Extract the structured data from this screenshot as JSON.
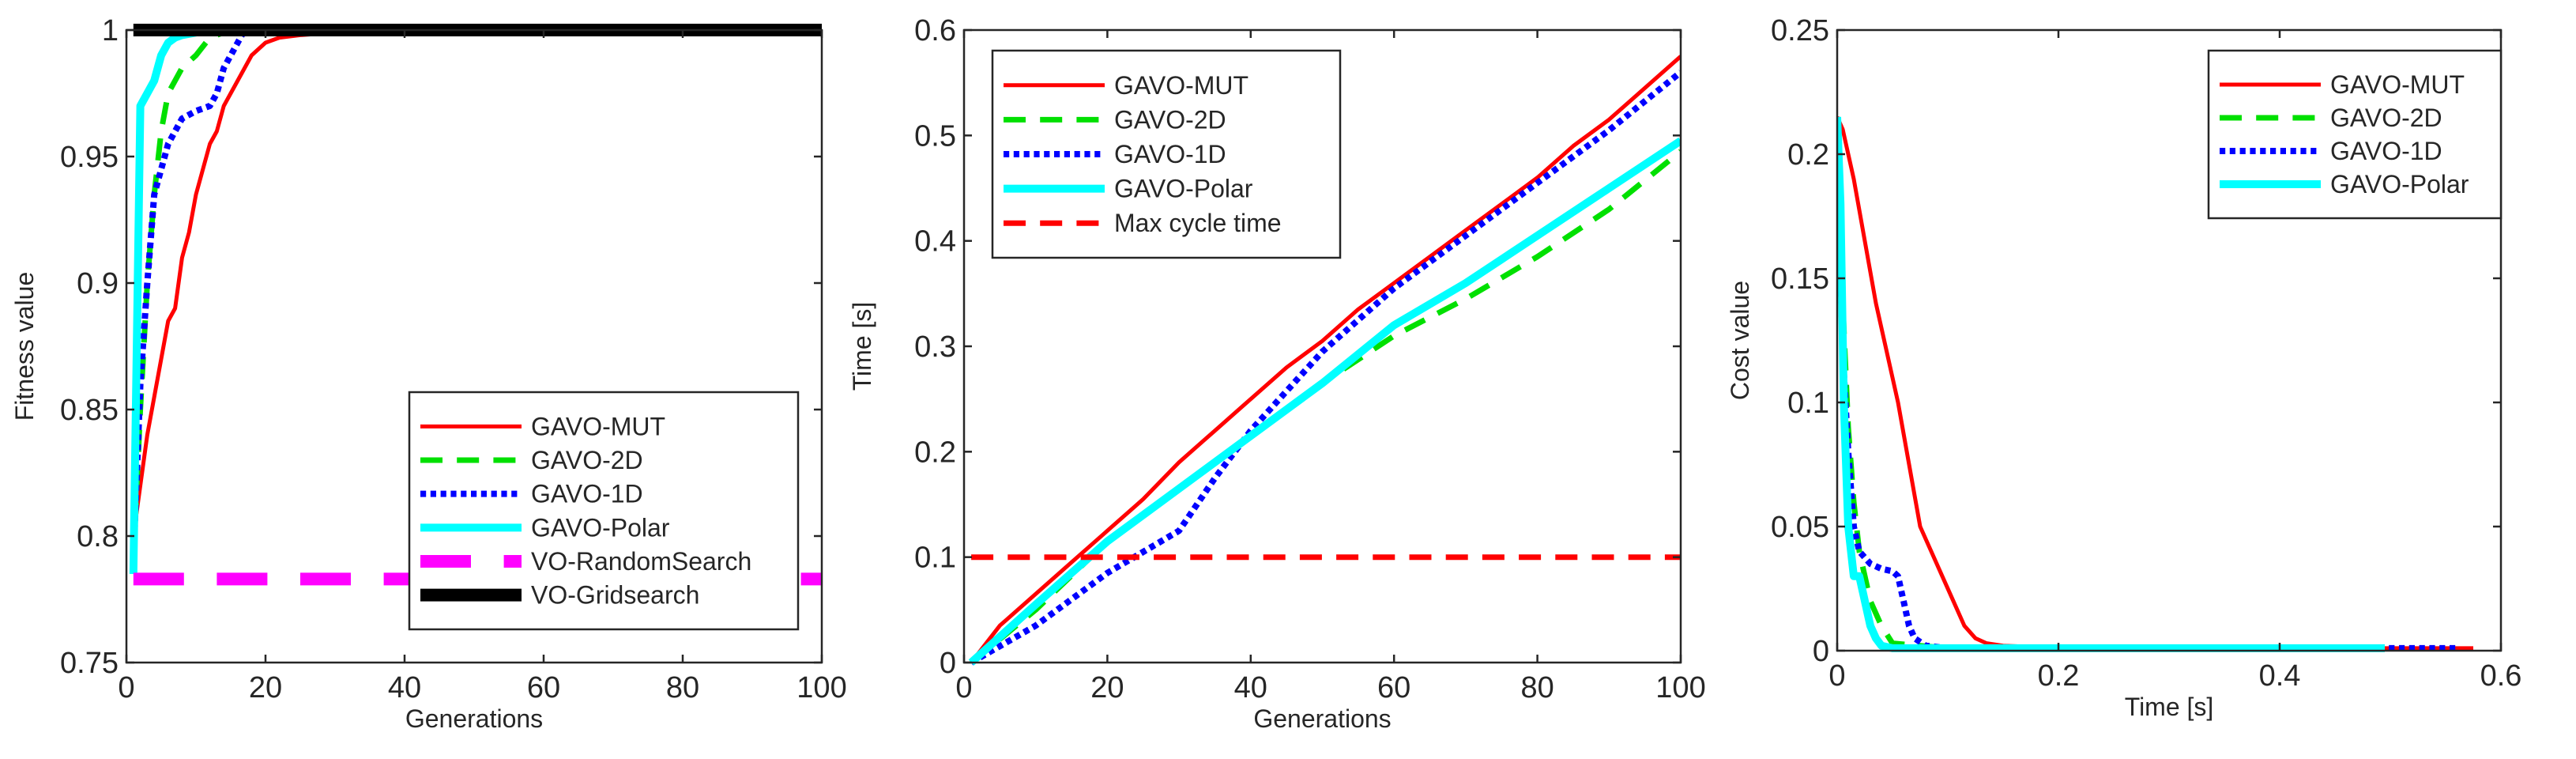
{
  "chart_data": [
    {
      "type": "line",
      "xlabel": "Generations",
      "ylabel": "Fitness value",
      "xlim": [
        0,
        100
      ],
      "ylim": [
        0.75,
        1
      ],
      "xticks": [
        0,
        20,
        40,
        60,
        80,
        100
      ],
      "xtick_labels": [
        "0",
        "20",
        "40",
        "60",
        "80",
        "100"
      ],
      "yticks": [
        0.75,
        0.8,
        0.85,
        0.9,
        0.95,
        1
      ],
      "ytick_labels": [
        "0.75",
        "0.8",
        "0.85",
        "0.9",
        "0.95",
        "1"
      ],
      "legend_position": "bottom-right",
      "series": [
        {
          "name": "GAVO-MUT",
          "color": "#ff0000",
          "style": "solid",
          "width": 5,
          "x": [
            1,
            2,
            3,
            4,
            5,
            6,
            7,
            8,
            9,
            10,
            11,
            12,
            13,
            14,
            15,
            16,
            17,
            18,
            20,
            22,
            25,
            30
          ],
          "y": [
            0.8,
            0.82,
            0.84,
            0.855,
            0.87,
            0.885,
            0.89,
            0.91,
            0.92,
            0.935,
            0.945,
            0.955,
            0.96,
            0.97,
            0.975,
            0.98,
            0.985,
            0.99,
            0.995,
            0.997,
            0.998,
            0.999
          ]
        },
        {
          "name": "GAVO-2D",
          "color": "#00e000",
          "style": "dashed",
          "width": 7,
          "x": [
            1,
            2,
            3,
            4,
            5,
            6,
            8,
            10,
            12,
            14
          ],
          "y": [
            0.79,
            0.85,
            0.9,
            0.935,
            0.96,
            0.975,
            0.985,
            0.99,
            0.997,
            0.999
          ]
        },
        {
          "name": "GAVO-1D",
          "color": "#0000ff",
          "style": "dotted",
          "width": 8,
          "x": [
            1,
            2,
            3,
            4,
            5,
            6,
            7,
            8,
            10,
            12,
            13,
            14,
            15,
            16,
            17
          ],
          "y": [
            0.79,
            0.86,
            0.9,
            0.935,
            0.945,
            0.955,
            0.96,
            0.965,
            0.968,
            0.97,
            0.975,
            0.985,
            0.99,
            0.995,
            1.0
          ]
        },
        {
          "name": "GAVO-Polar",
          "color": "#00ffff",
          "style": "solid",
          "width": 10,
          "x": [
            1,
            2,
            3,
            4,
            5,
            6,
            7,
            8,
            10
          ],
          "y": [
            0.785,
            0.97,
            0.975,
            0.98,
            0.99,
            0.995,
            0.997,
            0.998,
            0.999
          ]
        },
        {
          "name": "VO-RandomSearch",
          "color": "#ff00ff",
          "style": "dashed",
          "width": 16,
          "x": [
            1,
            100
          ],
          "y": [
            0.783,
            0.783
          ]
        },
        {
          "name": "VO-Gridsearch",
          "color": "#000000",
          "style": "solid",
          "width": 16,
          "x": [
            1,
            100
          ],
          "y": [
            1,
            1
          ]
        }
      ]
    },
    {
      "type": "line",
      "xlabel": "Generations",
      "ylabel": "Time [s]",
      "xlim": [
        0,
        100
      ],
      "ylim": [
        0,
        0.6
      ],
      "xticks": [
        0,
        20,
        40,
        60,
        80,
        100
      ],
      "xtick_labels": [
        "0",
        "20",
        "40",
        "60",
        "80",
        "100"
      ],
      "yticks": [
        0,
        0.1,
        0.2,
        0.3,
        0.4,
        0.5,
        0.6
      ],
      "ytick_labels": [
        "0",
        "0.1",
        "0.2",
        "0.3",
        "0.4",
        "0.5",
        "0.6"
      ],
      "legend_position": "top-left",
      "series": [
        {
          "name": "GAVO-MUT",
          "color": "#ff0000",
          "style": "solid",
          "width": 5,
          "x": [
            1,
            5,
            10,
            15,
            20,
            25,
            30,
            35,
            40,
            45,
            50,
            55,
            60,
            65,
            70,
            75,
            80,
            85,
            90,
            95,
            100
          ],
          "y": [
            0,
            0.035,
            0.065,
            0.095,
            0.125,
            0.155,
            0.19,
            0.22,
            0.25,
            0.28,
            0.305,
            0.335,
            0.36,
            0.385,
            0.41,
            0.435,
            0.46,
            0.49,
            0.515,
            0.545,
            0.575
          ]
        },
        {
          "name": "GAVO-2D",
          "color": "#00e000",
          "style": "dashed",
          "width": 7,
          "x": [
            1,
            10,
            20,
            30,
            40,
            50,
            60,
            70,
            80,
            90,
            100
          ],
          "y": [
            0,
            0.05,
            0.115,
            0.165,
            0.215,
            0.265,
            0.31,
            0.345,
            0.385,
            0.43,
            0.485
          ]
        },
        {
          "name": "GAVO-1D",
          "color": "#0000ff",
          "style": "dotted",
          "width": 8,
          "x": [
            1,
            10,
            20,
            25,
            30,
            35,
            40,
            50,
            60,
            70,
            80,
            90,
            100
          ],
          "y": [
            0,
            0.035,
            0.085,
            0.105,
            0.125,
            0.175,
            0.22,
            0.295,
            0.355,
            0.405,
            0.455,
            0.505,
            0.56
          ]
        },
        {
          "name": "GAVO-Polar",
          "color": "#00ffff",
          "style": "solid",
          "width": 10,
          "x": [
            1,
            10,
            20,
            30,
            40,
            50,
            60,
            70,
            80,
            90,
            100
          ],
          "y": [
            0,
            0.055,
            0.115,
            0.165,
            0.215,
            0.265,
            0.32,
            0.36,
            0.405,
            0.45,
            0.495
          ]
        },
        {
          "name": "Max cycle time",
          "color": "#ff0000",
          "style": "dashed",
          "width": 7,
          "x": [
            1,
            100
          ],
          "y": [
            0.1,
            0.1
          ]
        }
      ]
    },
    {
      "type": "line",
      "xlabel": "Time [s]",
      "ylabel": "Cost value",
      "xlim": [
        0,
        0.6
      ],
      "ylim": [
        0,
        0.25
      ],
      "xticks": [
        0,
        0.2,
        0.4,
        0.6
      ],
      "xtick_labels": [
        "0",
        "0.2",
        "0.4",
        "0.6"
      ],
      "yticks": [
        0,
        0.05,
        0.1,
        0.15,
        0.2,
        0.25
      ],
      "ytick_labels": [
        "0",
        "0.05",
        "0.1",
        "0.15",
        "0.2",
        "0.25"
      ],
      "legend_position": "top-right",
      "series": [
        {
          "name": "GAVO-MUT",
          "color": "#ff0000",
          "style": "solid",
          "width": 5,
          "x": [
            0,
            0.005,
            0.015,
            0.025,
            0.035,
            0.045,
            0.055,
            0.065,
            0.075,
            0.085,
            0.095,
            0.105,
            0.115,
            0.125,
            0.135,
            0.15,
            0.2,
            0.3,
            0.4,
            0.5,
            0.575
          ],
          "y": [
            0.215,
            0.21,
            0.19,
            0.165,
            0.14,
            0.12,
            0.1,
            0.075,
            0.05,
            0.04,
            0.03,
            0.02,
            0.01,
            0.005,
            0.003,
            0.002,
            0.001,
            0.001,
            0.001,
            0.001,
            0.001
          ]
        },
        {
          "name": "GAVO-2D",
          "color": "#00e000",
          "style": "dashed",
          "width": 7,
          "x": [
            0,
            0.005,
            0.01,
            0.015,
            0.02,
            0.025,
            0.03,
            0.035,
            0.04,
            0.05,
            0.1,
            0.2,
            0.3,
            0.4,
            0.485
          ],
          "y": [
            0.21,
            0.14,
            0.09,
            0.06,
            0.04,
            0.03,
            0.02,
            0.015,
            0.01,
            0.003,
            0.001,
            0.001,
            0.001,
            0.001,
            0.001
          ]
        },
        {
          "name": "GAVO-1D",
          "color": "#0000ff",
          "style": "dotted",
          "width": 8,
          "x": [
            0,
            0.005,
            0.01,
            0.015,
            0.02,
            0.03,
            0.04,
            0.05,
            0.055,
            0.06,
            0.065,
            0.07,
            0.08,
            0.1,
            0.2,
            0.3,
            0.4,
            0.5,
            0.56
          ],
          "y": [
            0.21,
            0.12,
            0.08,
            0.05,
            0.04,
            0.035,
            0.033,
            0.032,
            0.03,
            0.02,
            0.01,
            0.005,
            0.002,
            0.001,
            0.001,
            0.001,
            0.001,
            0.001,
            0.001
          ]
        },
        {
          "name": "GAVO-Polar",
          "color": "#00ffff",
          "style": "solid",
          "width": 10,
          "x": [
            0,
            0.003,
            0.006,
            0.01,
            0.015,
            0.02,
            0.025,
            0.03,
            0.035,
            0.04,
            0.05,
            0.1,
            0.2,
            0.3,
            0.4,
            0.495
          ],
          "y": [
            0.215,
            0.18,
            0.1,
            0.05,
            0.03,
            0.03,
            0.02,
            0.01,
            0.005,
            0.002,
            0.001,
            0.001,
            0.001,
            0.001,
            0.001,
            0.001
          ]
        }
      ]
    }
  ]
}
